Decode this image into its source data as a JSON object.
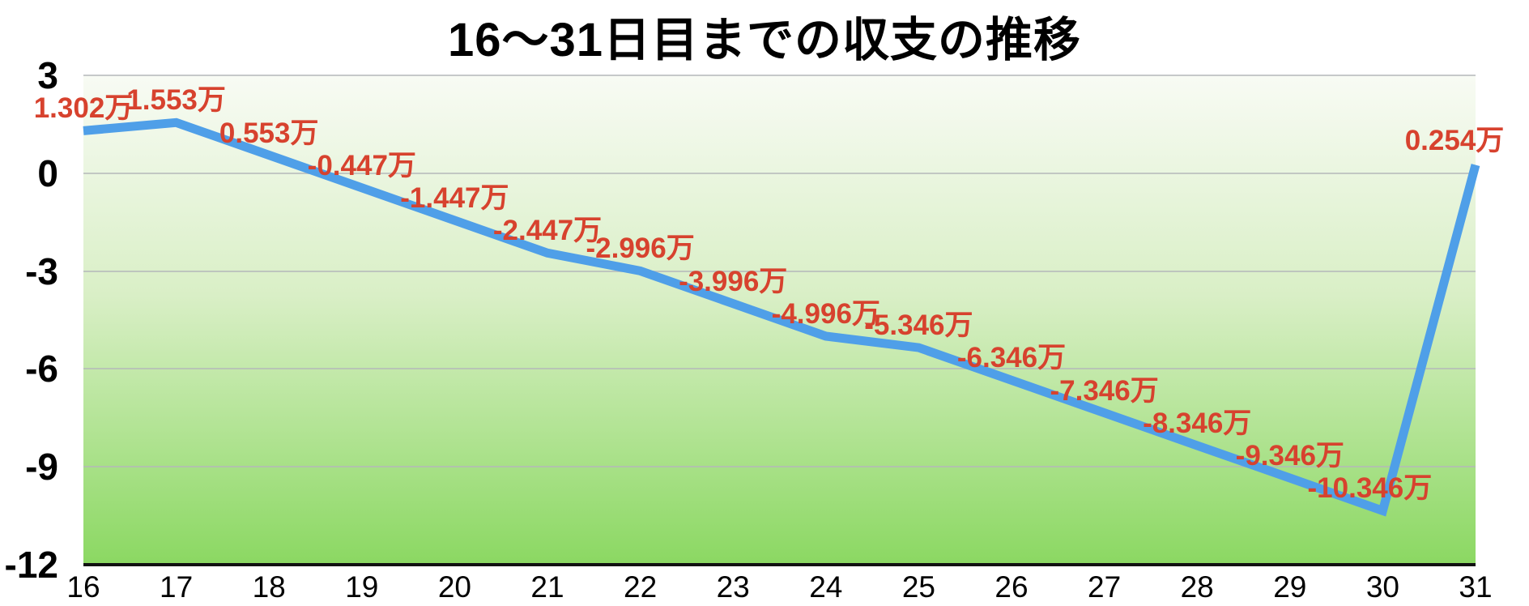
{
  "chart_data": {
    "type": "line",
    "title": "16〜31日目までの収支の推移",
    "x": [
      16,
      17,
      18,
      19,
      20,
      21,
      22,
      23,
      24,
      25,
      26,
      27,
      28,
      29,
      30,
      31
    ],
    "values": [
      1.302,
      1.553,
      0.553,
      -0.447,
      -1.447,
      -2.447,
      -2.996,
      -3.996,
      -4.996,
      -5.346,
      -6.346,
      -7.346,
      -8.346,
      -9.346,
      -10.346,
      0.254
    ],
    "point_labels": [
      "1.302万",
      "1.553万",
      "0.553万",
      "-0.447万",
      "-1.447万",
      "-2.447万",
      "-2.996万",
      "-3.996万",
      "-4.996万",
      "-5.346万",
      "-6.346万",
      "-7.346万",
      "-8.346万",
      "-9.346万",
      "-10.346万",
      "0.254万"
    ],
    "unit": "万",
    "xlabel": "",
    "ylabel": "",
    "ylim": [
      -12,
      3
    ],
    "yticks": [
      3,
      0,
      -3,
      -6,
      -9,
      -12
    ],
    "grid": true,
    "legend": "none",
    "line_color": "#4f9fe8",
    "label_color": "#d7422e",
    "plot_bg_gradient_top": "#f8fbf4",
    "plot_bg_gradient_bottom": "#8bd862",
    "gridline_color": "#b4b7b9",
    "axis_line_color": "#111111",
    "tick_label_color": "#000000"
  }
}
